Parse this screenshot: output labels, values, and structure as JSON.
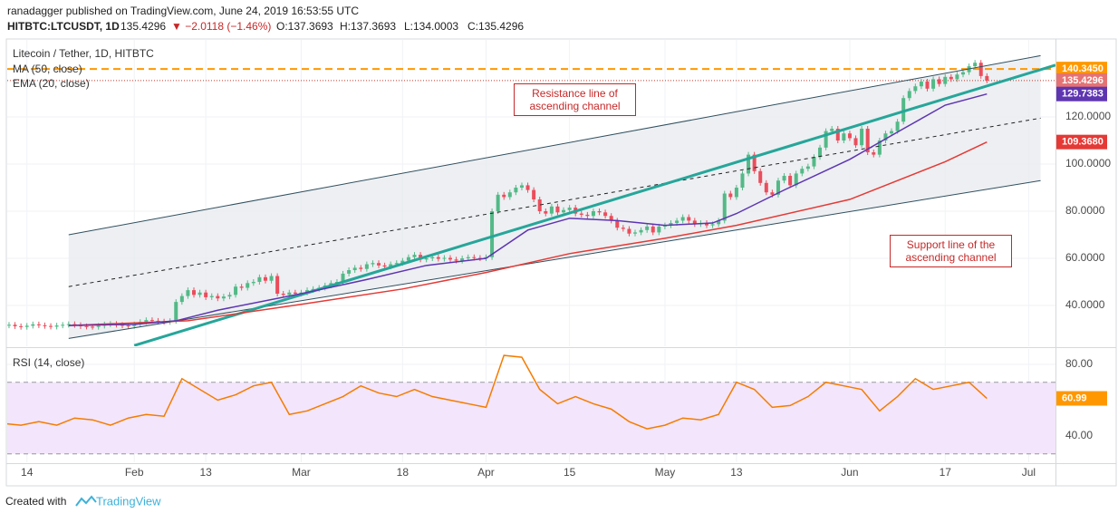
{
  "header": {
    "published": "ranadagger published on TradingView.com, June 24, 2019 16:53:55 UTC",
    "symbol": "HITBTC:LTCUSDT, 1D",
    "price": "135.4296",
    "change": "▼ −2.0118 (−1.46%)",
    "open": "O:137.3693",
    "high": "H:137.3693",
    "low": "L:134.0003",
    "close": "C:135.4296"
  },
  "footer": {
    "created": "Created with",
    "brand": "TradingView"
  },
  "chart_data": [
    {
      "type": "candlestick",
      "title": "Litecoin / Tether, 1D, HITBTC",
      "up_color": "#53b987",
      "down_color": "#eb4d5c",
      "xlim": [
        9.7,
        185.5
      ],
      "ylim": [
        22.7,
        152.7
      ],
      "yticks": [
        {
          "value": 40,
          "label": "40.0000"
        },
        {
          "value": 60,
          "label": "60.0000"
        },
        {
          "value": 80,
          "label": "80.0000"
        },
        {
          "value": 100,
          "label": "100.0000"
        },
        {
          "value": 120,
          "label": "120.0000"
        }
      ],
      "grid": true,
      "x": [
        9,
        10,
        11,
        12,
        13,
        14,
        15,
        16,
        17,
        18,
        19,
        20,
        21,
        22,
        23,
        24,
        25,
        26,
        27,
        28,
        29,
        30,
        31,
        32,
        33,
        34,
        35,
        36,
        37,
        38,
        39,
        40,
        41,
        42,
        43,
        44,
        45,
        46,
        47,
        48,
        49,
        50,
        51,
        52,
        53,
        54,
        55,
        56,
        57,
        58,
        59,
        60,
        61,
        62,
        63,
        64,
        65,
        66,
        67,
        68,
        69,
        70,
        71,
        72,
        73,
        74,
        75,
        76,
        77,
        78,
        79,
        80,
        81,
        82,
        83,
        84,
        85,
        86,
        87,
        88,
        89,
        90,
        91,
        92,
        93,
        94,
        95,
        96,
        97,
        98,
        99,
        100,
        101,
        102,
        103,
        104,
        105,
        106,
        107,
        108,
        109,
        110,
        111,
        112,
        113,
        114,
        115,
        116,
        117,
        118,
        119,
        120,
        121,
        122,
        123,
        124,
        125,
        126,
        127,
        128,
        129,
        130,
        131,
        132,
        133,
        134,
        135,
        136,
        137,
        138,
        139,
        140,
        141,
        142,
        143,
        144,
        145,
        146,
        147,
        148,
        149,
        150,
        151,
        152,
        153,
        154,
        155,
        156,
        157,
        158,
        159,
        160,
        161,
        162,
        163,
        164,
        165,
        166,
        167,
        168,
        169,
        170,
        171,
        172,
        173,
        174
      ],
      "close": [
        31.5,
        31.8,
        31.2,
        30.9,
        31.4,
        32.0,
        31.6,
        31.3,
        31.0,
        31.5,
        31.8,
        32.1,
        31.7,
        31.2,
        31.0,
        30.9,
        31.4,
        32.0,
        32.2,
        31.8,
        31.5,
        31.3,
        32.0,
        33.0,
        33.8,
        33.5,
        33.2,
        33.0,
        33.4,
        41.5,
        44.0,
        46.5,
        44.5,
        45.5,
        43.5,
        44.0,
        43.0,
        43.8,
        44.5,
        48.0,
        47.5,
        49.5,
        50.0,
        52.0,
        50.5,
        52.5,
        45.0,
        44.5,
        45.5,
        45.0,
        45.5,
        46.5,
        47.0,
        47.5,
        48.5,
        49.5,
        50.0,
        53.5,
        55.0,
        56.0,
        55.5,
        57.5,
        58.0,
        57.0,
        56.5,
        57.5,
        58.0,
        59.0,
        60.5,
        61.5,
        59.5,
        60.0,
        60.5,
        59.8,
        60.2,
        59.5,
        59.0,
        60.0,
        60.5,
        60.2,
        60.0,
        60.5,
        80.0,
        87.0,
        86.0,
        88.0,
        90.0,
        91.0,
        89.0,
        85.0,
        80.0,
        79.0,
        82.0,
        79.5,
        80.5,
        81.5,
        79.0,
        78.5,
        78.0,
        80.0,
        79.5,
        78.0,
        76.0,
        73.0,
        72.5,
        70.5,
        71.0,
        72.0,
        73.5,
        71.0,
        73.5,
        74.0,
        75.0,
        76.0,
        77.5,
        76.0,
        74.5,
        75.0,
        74.0,
        74.5,
        76.0,
        87.5,
        86.0,
        90.0,
        96.0,
        104.0,
        97.0,
        92.0,
        88.0,
        87.0,
        93.0,
        95.0,
        91.0,
        96.0,
        98.0,
        99.0,
        103.0,
        107.0,
        114.0,
        115.0,
        110.0,
        113.0,
        111.0,
        108.0,
        115.0,
        105.0,
        104.0,
        110.0,
        113.0,
        114.0,
        118.0,
        128.0,
        131.0,
        133.0,
        135.0,
        132.0,
        136.0,
        134.0,
        137.0,
        136.0,
        138.0,
        139.0,
        141.5,
        143.0,
        137.3693,
        135.4296
      ],
      "series": [
        {
          "name": "MA (50, close)",
          "color": "#e53935",
          "x": [
            20,
            40,
            59,
            76,
            90,
            104,
            120,
            132,
            151,
            167,
            174
          ],
          "values": [
            31.5,
            33.5,
            40.5,
            47,
            54,
            62,
            68.5,
            74,
            85,
            101,
            109.368
          ]
        },
        {
          "name": "EMA (20, close)",
          "color": "#5e35b1",
          "x": [
            20,
            31,
            38,
            45,
            59,
            70,
            80,
            90,
            97,
            104,
            112,
            120,
            128,
            132,
            140,
            151,
            160,
            167,
            174
          ],
          "values": [
            31.5,
            32,
            33.5,
            38,
            45,
            51,
            57,
            60,
            72,
            77,
            76,
            74,
            75,
            79,
            89,
            102,
            115,
            125,
            129.7383
          ]
        }
      ],
      "trend_lines": [
        {
          "x": [
            20,
            183
          ],
          "values": [
            70,
            146
          ],
          "color": "#2f4f5f",
          "width": 1
        },
        {
          "x": [
            20,
            183
          ],
          "values": [
            26,
            93
          ],
          "color": "#2f4f5f",
          "width": 1
        },
        {
          "x": [
            20,
            183
          ],
          "values": [
            48,
            119.5
          ],
          "color": "#222222",
          "width": 1,
          "dash": true
        },
        {
          "x": [
            31,
            185.5
          ],
          "values": [
            23,
            142
          ],
          "color": "#26a69a",
          "width": 3
        }
      ],
      "channel_fill": "#e9ebef",
      "hlines": [
        {
          "value": 140.345,
          "color": "#ff9800",
          "dash": "8 5",
          "width": 2
        },
        {
          "value": 135.4296,
          "color": "#c0392b",
          "dash": "1 2",
          "width": 1
        }
      ],
      "price_labels": [
        {
          "value": 140.345,
          "label": "140.3450",
          "color": "#ff9800"
        },
        {
          "value": 135.4296,
          "color": "#e57373"
        },
        {
          "value": 129.7383,
          "color": "#5e35b1"
        },
        {
          "value": 109.368,
          "label": "109.3680",
          "color": "#e53935"
        }
      ],
      "annotations": [
        {
          "text": "Resistance line of ascending channel"
        },
        {
          "text": "Support line of the ascending channel"
        }
      ]
    },
    {
      "type": "line",
      "title": "RSI (14, close)",
      "xlim": [
        9.7,
        185.5
      ],
      "ylim": [
        25.3,
        88.6
      ],
      "yticks": [
        {
          "value": 40,
          "label": "40.00"
        },
        {
          "value": 80,
          "label": "80.00"
        }
      ],
      "xticks": [
        {
          "value": 13,
          "label": "14"
        },
        {
          "value": 31,
          "label": "Feb"
        },
        {
          "value": 43,
          "label": "13"
        },
        {
          "value": 59,
          "label": "Mar"
        },
        {
          "value": 76,
          "label": "18"
        },
        {
          "value": 90,
          "label": "Apr"
        },
        {
          "value": 104,
          "label": "15"
        },
        {
          "value": 120,
          "label": "May"
        },
        {
          "value": 132,
          "label": "13"
        },
        {
          "value": 151,
          "label": "Jun"
        },
        {
          "value": 167,
          "label": "17"
        },
        {
          "value": 181,
          "label": "Jul"
        }
      ],
      "grid": true,
      "bands": [
        30,
        70
      ],
      "band_color": "#f3e5fb",
      "series": [
        {
          "name": "RSI",
          "color": "#f57c00",
          "x": [
            9,
            12,
            15,
            18,
            21,
            24,
            27,
            30,
            33,
            36,
            39,
            42,
            45,
            48,
            51,
            54,
            57,
            60,
            63,
            66,
            69,
            72,
            75,
            78,
            81,
            84,
            87,
            90,
            93,
            96,
            99,
            102,
            105,
            108,
            111,
            114,
            117,
            120,
            123,
            126,
            129,
            132,
            135,
            138,
            141,
            144,
            147,
            150,
            153,
            156,
            159,
            162,
            165,
            168,
            171,
            174
          ],
          "values": [
            47,
            46,
            48,
            46,
            50,
            49,
            46,
            50,
            52,
            51,
            72,
            66,
            60,
            63,
            68,
            70,
            52,
            54,
            58,
            62,
            68,
            64,
            62,
            66,
            62,
            60,
            58,
            56,
            85,
            84,
            66,
            58,
            62,
            58,
            55,
            48,
            44,
            46,
            50,
            49,
            52,
            70,
            66,
            56,
            57,
            62,
            70,
            68,
            66,
            54,
            62,
            72,
            66,
            68,
            70,
            60.99
          ]
        }
      ],
      "price_labels": [
        {
          "value": 60.99,
          "color": "#ff9800"
        }
      ]
    }
  ]
}
